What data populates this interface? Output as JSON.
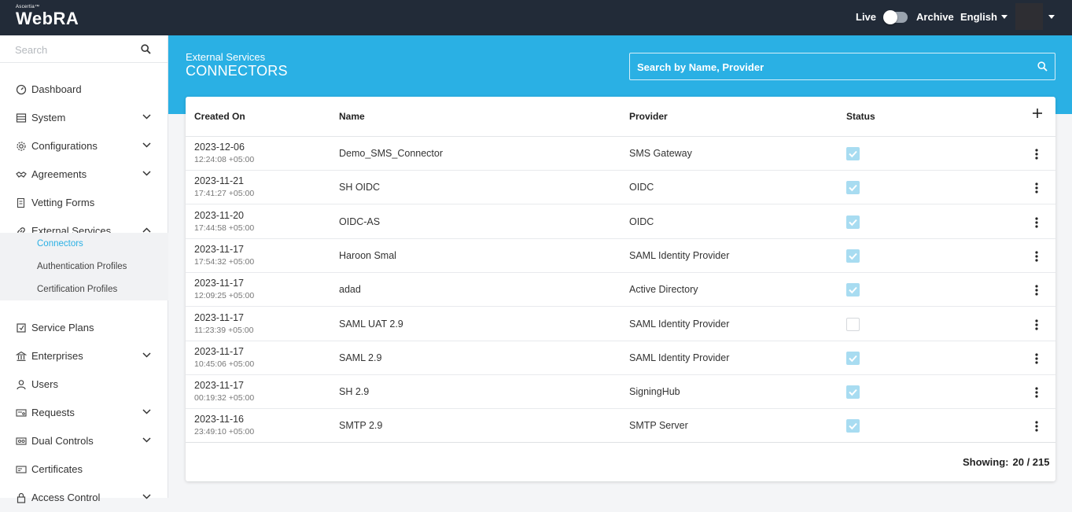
{
  "topbar": {
    "brand_small": "Ascertia™",
    "brand_main": "WebRA",
    "live_label": "Live",
    "archive_label": "Archive",
    "language": "English"
  },
  "sidebar": {
    "search_placeholder": "Search",
    "items": [
      {
        "label": "Dashboard",
        "icon": "dashboard-icon",
        "chevron": ""
      },
      {
        "label": "System",
        "icon": "system-icon",
        "chevron": "down"
      },
      {
        "label": "Configurations",
        "icon": "gear-icon",
        "chevron": "down"
      },
      {
        "label": "Agreements",
        "icon": "handshake-icon",
        "chevron": "down"
      },
      {
        "label": "Vetting Forms",
        "icon": "form-icon",
        "chevron": ""
      },
      {
        "label": "External Services",
        "icon": "link-icon",
        "chevron": "up"
      },
      {
        "label": "Service Plans",
        "icon": "service-plan-icon",
        "chevron": ""
      },
      {
        "label": "Enterprises",
        "icon": "bank-icon",
        "chevron": "down"
      },
      {
        "label": "Users",
        "icon": "user-icon",
        "chevron": ""
      },
      {
        "label": "Requests",
        "icon": "requests-icon",
        "chevron": "down"
      },
      {
        "label": "Dual Controls",
        "icon": "dual-control-icon",
        "chevron": "down"
      },
      {
        "label": "Certificates",
        "icon": "certificate-icon",
        "chevron": ""
      },
      {
        "label": "Access Control",
        "icon": "lock-icon",
        "chevron": "down"
      }
    ],
    "subitems": [
      {
        "label": "Connectors",
        "active": true
      },
      {
        "label": "Authentication Profiles",
        "active": false
      },
      {
        "label": "Certification Profiles",
        "active": false
      }
    ]
  },
  "header": {
    "breadcrumb": "External Services",
    "title": "CONNECTORS",
    "search_placeholder": "Search by Name, Provider"
  },
  "table": {
    "columns": [
      "Created On",
      "Name",
      "Provider",
      "Status"
    ],
    "rows": [
      {
        "date": "2023-12-06",
        "time": "12:24:08 +05:00",
        "name": "Demo_SMS_Connector",
        "provider": "SMS Gateway",
        "status": true
      },
      {
        "date": "2023-11-21",
        "time": "17:41:27 +05:00",
        "name": "SH OIDC",
        "provider": "OIDC",
        "status": true
      },
      {
        "date": "2023-11-20",
        "time": "17:44:58 +05:00",
        "name": "OIDC-AS",
        "provider": "OIDC",
        "status": true
      },
      {
        "date": "2023-11-17",
        "time": "17:54:32 +05:00",
        "name": "Haroon Smal",
        "provider": "SAML Identity Provider",
        "status": true
      },
      {
        "date": "2023-11-17",
        "time": "12:09:25 +05:00",
        "name": "adad",
        "provider": "Active Directory",
        "status": true
      },
      {
        "date": "2023-11-17",
        "time": "11:23:39 +05:00",
        "name": "SAML UAT 2.9",
        "provider": "SAML Identity Provider",
        "status": false
      },
      {
        "date": "2023-11-17",
        "time": "10:45:06 +05:00",
        "name": "SAML 2.9",
        "provider": "SAML Identity Provider",
        "status": true
      },
      {
        "date": "2023-11-17",
        "time": "00:19:32 +05:00",
        "name": "SH 2.9",
        "provider": "SigningHub",
        "status": true
      },
      {
        "date": "2023-11-16",
        "time": "23:49:10 +05:00",
        "name": "SMTP 2.9",
        "provider": "SMTP Server",
        "status": true
      }
    ],
    "showing_label": "Showing:",
    "showing_value": "20 / 215"
  },
  "colors": {
    "topbar": "#222b38",
    "accent": "#2ab0e4",
    "checkbox_on": "#a8dcf1"
  }
}
